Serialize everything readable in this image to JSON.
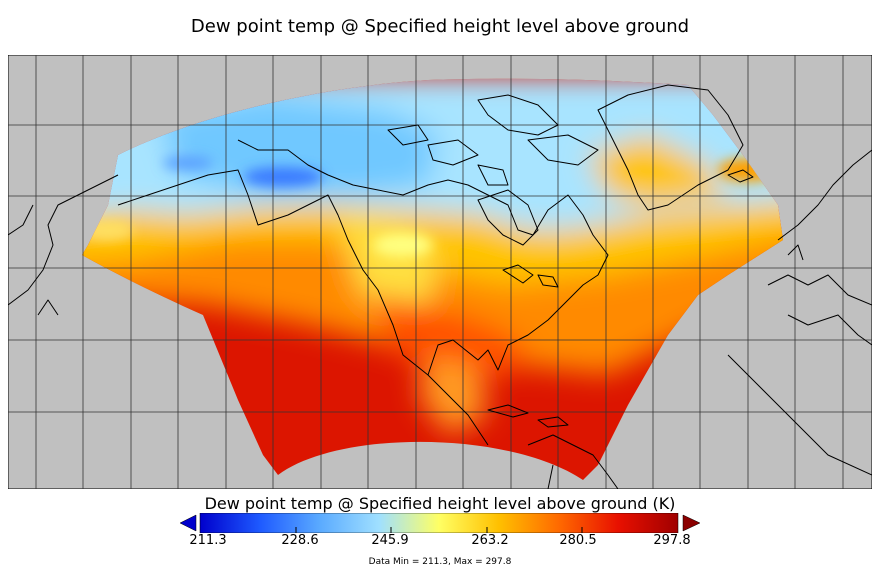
{
  "title": "Dew point temp @ Specified height level above ground",
  "colorbar": {
    "title": "Dew point temp @ Specified height level above ground (K)",
    "ticks": [
      "211.3",
      "228.6",
      "245.9",
      "263.2",
      "280.5",
      "297.8"
    ],
    "min": 211.3,
    "max": 297.8,
    "colors": [
      "#0000cc",
      "#1e5aff",
      "#5aaaff",
      "#a0e0ff",
      "#ffff64",
      "#ffc000",
      "#ff6a00",
      "#e81000",
      "#a00000"
    ],
    "background": "#c0c0c0",
    "data_range_text": "Data Min = 211.3, Max = 297.8"
  }
}
